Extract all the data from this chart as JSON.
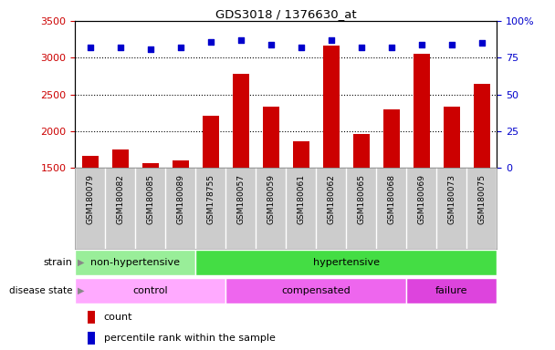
{
  "title": "GDS3018 / 1376630_at",
  "samples": [
    "GSM180079",
    "GSM180082",
    "GSM180085",
    "GSM180089",
    "GSM178755",
    "GSM180057",
    "GSM180059",
    "GSM180061",
    "GSM180062",
    "GSM180065",
    "GSM180068",
    "GSM180069",
    "GSM180073",
    "GSM180075"
  ],
  "counts": [
    1670,
    1750,
    1560,
    1600,
    2210,
    2780,
    2340,
    1860,
    3160,
    1960,
    2300,
    3060,
    2340,
    2650
  ],
  "percentile_ranks": [
    82,
    82,
    81,
    82,
    86,
    87,
    84,
    82,
    87,
    82,
    82,
    84,
    84,
    85
  ],
  "ylim_left": [
    1500,
    3500
  ],
  "ylim_right": [
    0,
    100
  ],
  "bar_color": "#cc0000",
  "dot_color": "#0000cc",
  "strain_groups": [
    {
      "label": "non-hypertensive",
      "start": 0,
      "end": 4,
      "color": "#99ee99"
    },
    {
      "label": "hypertensive",
      "start": 4,
      "end": 14,
      "color": "#44dd44"
    }
  ],
  "disease_groups": [
    {
      "label": "control",
      "start": 0,
      "end": 5,
      "color": "#ffaaff"
    },
    {
      "label": "compensated",
      "start": 5,
      "end": 11,
      "color": "#ee66ee"
    },
    {
      "label": "failure",
      "start": 11,
      "end": 14,
      "color": "#dd44dd"
    }
  ],
  "bar_color_label": "count",
  "dot_color_label": "percentile rank within the sample",
  "left_tick_color": "#cc0000",
  "right_tick_color": "#0000cc",
  "grid_yticks": [
    2000,
    2500,
    3000
  ],
  "left_yticks": [
    1500,
    2000,
    2500,
    3000,
    3500
  ],
  "right_yticks": [
    0,
    25,
    50,
    75,
    100
  ],
  "right_yticklabels": [
    "0",
    "25",
    "50",
    "75",
    "100%"
  ]
}
